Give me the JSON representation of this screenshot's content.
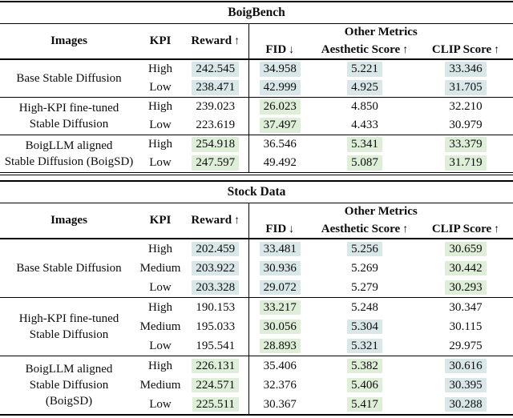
{
  "highlight_colors": {
    "blue": "#d9e7e9",
    "green": "#deeed8"
  },
  "tables": [
    {
      "title": "BoigBench",
      "header": {
        "images": "Images",
        "kpi": "KPI",
        "reward": {
          "label": "Reward",
          "arrow": "↑"
        },
        "other": "Other Metrics",
        "fid": {
          "label": "FID",
          "arrow": "↓"
        },
        "aesthetic": {
          "label": "Aesthetic Score",
          "arrow": "↑"
        },
        "clip": {
          "label": "CLIP Score",
          "arrow": "↑"
        }
      },
      "groups": [
        {
          "model": [
            "Base Stable Diffusion"
          ],
          "rows": [
            {
              "kpi": "High",
              "cells": [
                {
                  "v": "242.545",
                  "hl": "blue"
                },
                {
                  "v": "34.958",
                  "hl": "blue"
                },
                {
                  "v": "5.221",
                  "hl": "blue"
                },
                {
                  "v": "33.346",
                  "hl": "blue"
                }
              ]
            },
            {
              "kpi": "Low",
              "cells": [
                {
                  "v": "238.471",
                  "hl": "blue"
                },
                {
                  "v": "42.999",
                  "hl": "blue"
                },
                {
                  "v": "4.925",
                  "hl": "blue"
                },
                {
                  "v": "31.705",
                  "hl": "blue"
                }
              ]
            }
          ]
        },
        {
          "model": [
            "High-KPI fine-tuned",
            "Stable Diffusion"
          ],
          "rows": [
            {
              "kpi": "High",
              "cells": [
                {
                  "v": "239.023",
                  "hl": "none"
                },
                {
                  "v": "26.023",
                  "hl": "green"
                },
                {
                  "v": "4.850",
                  "hl": "none"
                },
                {
                  "v": "32.210",
                  "hl": "none"
                }
              ]
            },
            {
              "kpi": "Low",
              "cells": [
                {
                  "v": "223.619",
                  "hl": "none"
                },
                {
                  "v": "37.497",
                  "hl": "green"
                },
                {
                  "v": "4.433",
                  "hl": "none"
                },
                {
                  "v": "30.979",
                  "hl": "none"
                }
              ]
            }
          ]
        },
        {
          "model": [
            "BoigLLM aligned",
            "Stable Diffusion (BoigSD)"
          ],
          "rows": [
            {
              "kpi": "High",
              "cells": [
                {
                  "v": "254.918",
                  "hl": "green"
                },
                {
                  "v": "36.546",
                  "hl": "none"
                },
                {
                  "v": "5.341",
                  "hl": "green"
                },
                {
                  "v": "33.379",
                  "hl": "green"
                }
              ]
            },
            {
              "kpi": "Low",
              "cells": [
                {
                  "v": "247.597",
                  "hl": "green"
                },
                {
                  "v": "49.492",
                  "hl": "none"
                },
                {
                  "v": "5.087",
                  "hl": "green"
                },
                {
                  "v": "31.719",
                  "hl": "green"
                }
              ]
            }
          ]
        }
      ]
    },
    {
      "title": "Stock Data",
      "header": {
        "images": "Images",
        "kpi": "KPI",
        "reward": {
          "label": "Reward",
          "arrow": "↑"
        },
        "other": "Other Metrics",
        "fid": {
          "label": "FID",
          "arrow": "↓"
        },
        "aesthetic": {
          "label": "Aesthetic Score",
          "arrow": "↑"
        },
        "clip": {
          "label": "CLIP Score",
          "arrow": "↑"
        }
      },
      "groups": [
        {
          "model": [
            "Base Stable Diffusion"
          ],
          "rows": [
            {
              "kpi": "High",
              "cells": [
                {
                  "v": "202.459",
                  "hl": "blue"
                },
                {
                  "v": "33.481",
                  "hl": "blue"
                },
                {
                  "v": "5.256",
                  "hl": "blue"
                },
                {
                  "v": "30.659",
                  "hl": "green"
                }
              ]
            },
            {
              "kpi": "Medium",
              "cells": [
                {
                  "v": "203.922",
                  "hl": "blue"
                },
                {
                  "v": "30.936",
                  "hl": "blue"
                },
                {
                  "v": "5.269",
                  "hl": "none"
                },
                {
                  "v": "30.442",
                  "hl": "green"
                }
              ]
            },
            {
              "kpi": "Low",
              "cells": [
                {
                  "v": "203.328",
                  "hl": "blue"
                },
                {
                  "v": "29.072",
                  "hl": "blue"
                },
                {
                  "v": "5.279",
                  "hl": "none"
                },
                {
                  "v": "30.293",
                  "hl": "green"
                }
              ]
            }
          ]
        },
        {
          "model": [
            "High-KPI fine-tuned",
            "Stable Diffusion"
          ],
          "rows": [
            {
              "kpi": "High",
              "cells": [
                {
                  "v": "190.153",
                  "hl": "none"
                },
                {
                  "v": "33.217",
                  "hl": "green"
                },
                {
                  "v": "5.248",
                  "hl": "none"
                },
                {
                  "v": "30.347",
                  "hl": "none"
                }
              ]
            },
            {
              "kpi": "Medium",
              "cells": [
                {
                  "v": "195.033",
                  "hl": "none"
                },
                {
                  "v": "30.056",
                  "hl": "green"
                },
                {
                  "v": "5.304",
                  "hl": "blue"
                },
                {
                  "v": "30.115",
                  "hl": "none"
                }
              ]
            },
            {
              "kpi": "Low",
              "cells": [
                {
                  "v": "195.541",
                  "hl": "none"
                },
                {
                  "v": "28.893",
                  "hl": "green"
                },
                {
                  "v": "5.321",
                  "hl": "blue"
                },
                {
                  "v": "29.975",
                  "hl": "none"
                }
              ]
            }
          ]
        },
        {
          "model": [
            "BoigLLM aligned",
            "Stable Diffusion",
            "(BoigSD)"
          ],
          "rows": [
            {
              "kpi": "High",
              "cells": [
                {
                  "v": "226.131",
                  "hl": "green"
                },
                {
                  "v": "35.406",
                  "hl": "none"
                },
                {
                  "v": "5.382",
                  "hl": "green"
                },
                {
                  "v": "30.616",
                  "hl": "blue"
                }
              ]
            },
            {
              "kpi": "Medium",
              "cells": [
                {
                  "v": "224.571",
                  "hl": "green"
                },
                {
                  "v": "32.376",
                  "hl": "none"
                },
                {
                  "v": "5.406",
                  "hl": "green"
                },
                {
                  "v": "30.395",
                  "hl": "blue"
                }
              ]
            },
            {
              "kpi": "Low",
              "cells": [
                {
                  "v": "225.511",
                  "hl": "green"
                },
                {
                  "v": "30.367",
                  "hl": "none"
                },
                {
                  "v": "5.417",
                  "hl": "green"
                },
                {
                  "v": "30.288",
                  "hl": "blue"
                }
              ]
            }
          ]
        }
      ]
    }
  ]
}
